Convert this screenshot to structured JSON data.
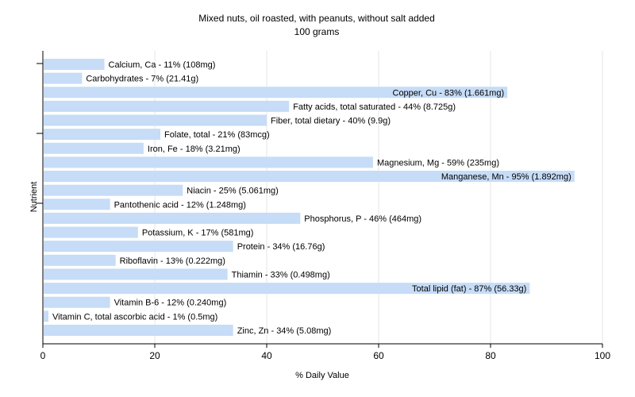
{
  "chart_data": {
    "type": "bar",
    "orientation": "horizontal",
    "title": "Mixed nuts, oil roasted, with peanuts, without salt added",
    "subtitle": "100 grams",
    "xlabel": "% Daily Value",
    "ylabel": "Nutrient",
    "xlim": [
      0,
      100
    ],
    "xticks": [
      0,
      20,
      40,
      60,
      80,
      100
    ],
    "grid": true,
    "bar_color": "#c6dcf7",
    "categories": [
      "Calcium, Ca",
      "Carbohydrates",
      "Copper, Cu",
      "Fatty acids, total saturated",
      "Fiber, total dietary",
      "Folate, total",
      "Iron, Fe",
      "Magnesium, Mg",
      "Manganese, Mn",
      "Niacin",
      "Pantothenic acid",
      "Phosphorus, P",
      "Potassium, K",
      "Protein",
      "Riboflavin",
      "Thiamin",
      "Total lipid (fat)",
      "Vitamin B-6",
      "Vitamin C, total ascorbic acid",
      "Zinc, Zn"
    ],
    "values": [
      11,
      7,
      83,
      44,
      40,
      21,
      18,
      59,
      95,
      25,
      12,
      46,
      17,
      34,
      13,
      33,
      87,
      12,
      1,
      34
    ],
    "labels": [
      "Calcium, Ca - 11% (108mg)",
      "Carbohydrates - 7% (21.41g)",
      "Copper, Cu - 83% (1.661mg)",
      "Fatty acids, total saturated - 44% (8.725g)",
      "Fiber, total dietary - 40% (9.9g)",
      "Folate, total - 21% (83mcg)",
      "Iron, Fe - 18% (3.21mg)",
      "Magnesium, Mg - 59% (235mg)",
      "Manganese, Mn - 95% (1.892mg)",
      "Niacin - 25% (5.061mg)",
      "Pantothenic acid - 12% (1.248mg)",
      "Phosphorus, P - 46% (464mg)",
      "Potassium, K - 17% (581mg)",
      "Protein - 34% (16.76g)",
      "Riboflavin - 13% (0.222mg)",
      "Thiamin - 33% (0.498mg)",
      "Total lipid (fat) - 87% (56.33g)",
      "Vitamin B-6 - 12% (0.240mg)",
      "Vitamin C, total ascorbic acid - 1% (0.5mg)",
      "Zinc, Zn - 34% (5.08mg)"
    ]
  }
}
